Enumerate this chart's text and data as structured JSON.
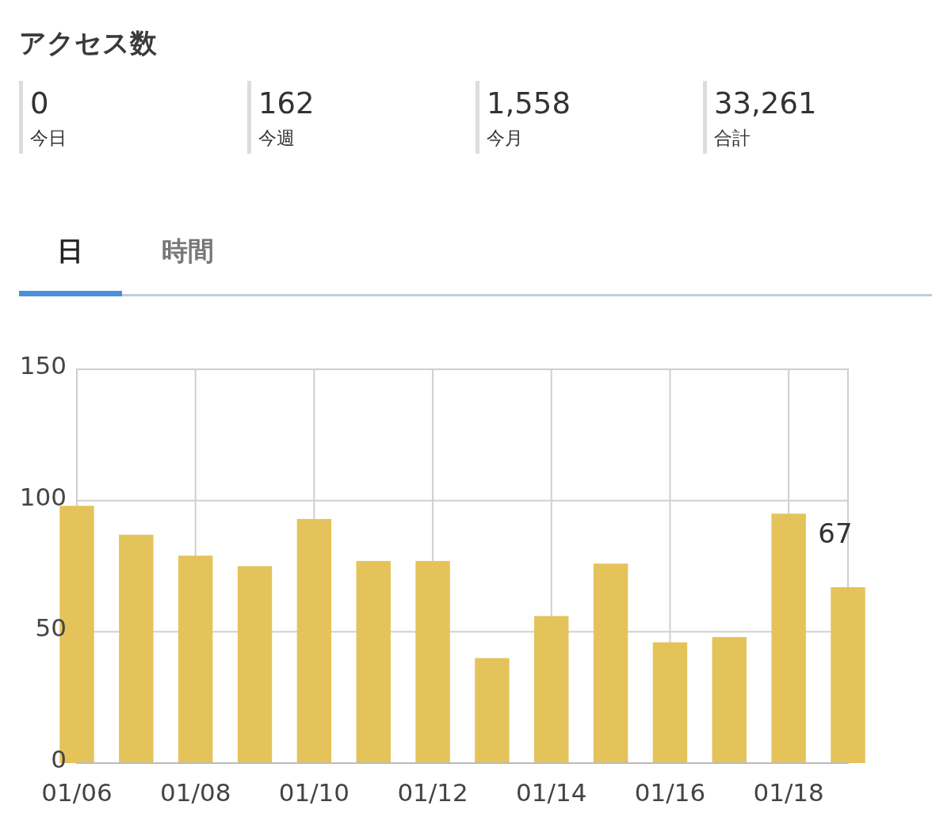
{
  "chart_data": [
    {
      "type": "other",
      "title": "アクセス数",
      "annotations": [
        "0",
        "今日",
        "162",
        "今週",
        "1,558",
        "今月",
        "33,261",
        "合計",
        "日",
        "時間"
      ]
    },
    {
      "type": "bar",
      "categories": [
        "01/06",
        null,
        "01/08",
        null,
        "01/10",
        null,
        "01/12",
        null,
        "01/14",
        null,
        "01/16",
        null,
        "01/18",
        null
      ],
      "values": [
        98,
        87,
        79,
        75,
        93,
        77,
        77,
        40,
        56,
        76,
        46,
        48,
        95,
        67
      ],
      "value_labels": [
        null,
        null,
        null,
        null,
        null,
        null,
        null,
        null,
        null,
        null,
        null,
        null,
        null,
        "67"
      ],
      "color": "#e4c35a",
      "ylim": [
        0,
        150
      ],
      "yticks": [
        0,
        50,
        100,
        150
      ],
      "grid": true
    }
  ]
}
